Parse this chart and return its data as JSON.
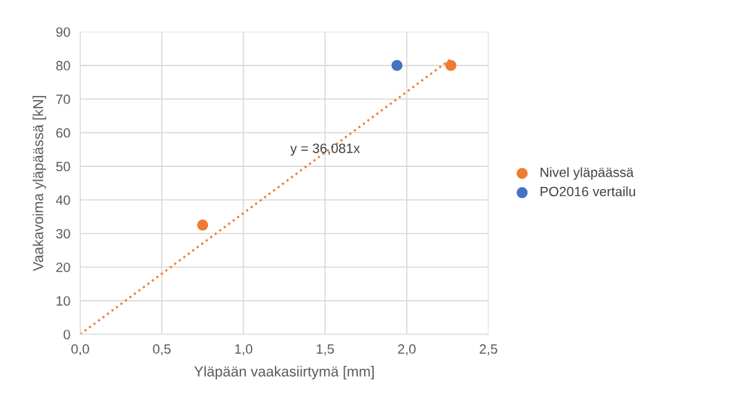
{
  "chart_data": {
    "type": "scatter",
    "xlabel": "Yläpään vaakasiirtymä [mm]",
    "ylabel": "Vaakavoima yläpäässä [kN]",
    "series": [
      {
        "name": "Nivel yläpäässä",
        "color": "#ed7d31",
        "x": [
          0.75,
          2.27
        ],
        "values": [
          32.5,
          80
        ]
      },
      {
        "name": "PO2016 vertailu",
        "color": "#4472c4",
        "x": [
          1.94
        ],
        "values": [
          80
        ]
      },
      {
        "type": "line",
        "color": "#ed7d31",
        "line_style": "dotted",
        "marker": "none",
        "x": [
          0,
          2.27
        ],
        "values": [
          0,
          81.9
        ]
      }
    ],
    "annotations": [
      {
        "text": "y = 36,081x",
        "x": 1.5,
        "y": 55
      }
    ],
    "xlim": [
      0,
      2.5
    ],
    "xticks": [
      {
        "value": 0,
        "label": "0,0"
      },
      {
        "value": 0.5,
        "label": "0,5"
      },
      {
        "value": 1,
        "label": "1,0"
      },
      {
        "value": 1.5,
        "label": "1,5"
      },
      {
        "value": 2,
        "label": "2,0"
      },
      {
        "value": 2.5,
        "label": "2,5"
      }
    ],
    "ylim": [
      0,
      90
    ],
    "yticks": [
      0,
      10,
      20,
      30,
      40,
      50,
      60,
      70,
      80,
      90
    ],
    "grid": true,
    "legend": "right",
    "marker": "circle"
  }
}
